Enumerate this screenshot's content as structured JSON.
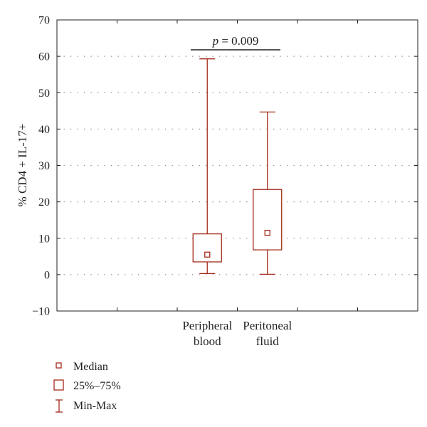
{
  "chart_data": {
    "type": "box",
    "categories": [
      "Peripheral\nblood",
      "Peritoneal\nfluid"
    ],
    "series": [
      {
        "category": "Peripheral\nblood",
        "min": 0.3,
        "q1": 3.5,
        "median": 5.5,
        "q3": 11.2,
        "max": 59.3
      },
      {
        "category": "Peritoneal\nfluid",
        "min": 0.1,
        "q1": 6.8,
        "median": 11.5,
        "q3": 23.4,
        "max": 44.7
      }
    ],
    "ylabel": "% CD4 + IL-17+",
    "xlabel": "",
    "title": "",
    "ylim": [
      -10,
      70
    ],
    "yticks": [
      -10,
      0,
      10,
      20,
      30,
      40,
      50,
      60,
      70
    ],
    "grid": "dotted horizontal",
    "annotation": {
      "p_label": "p",
      "p_value": " = 0.009",
      "y": 62
    },
    "legend": {
      "position": "bottom-left",
      "entries": [
        "Median",
        "25%–75%",
        "Min-Max"
      ]
    },
    "color": "#a52a1a"
  }
}
